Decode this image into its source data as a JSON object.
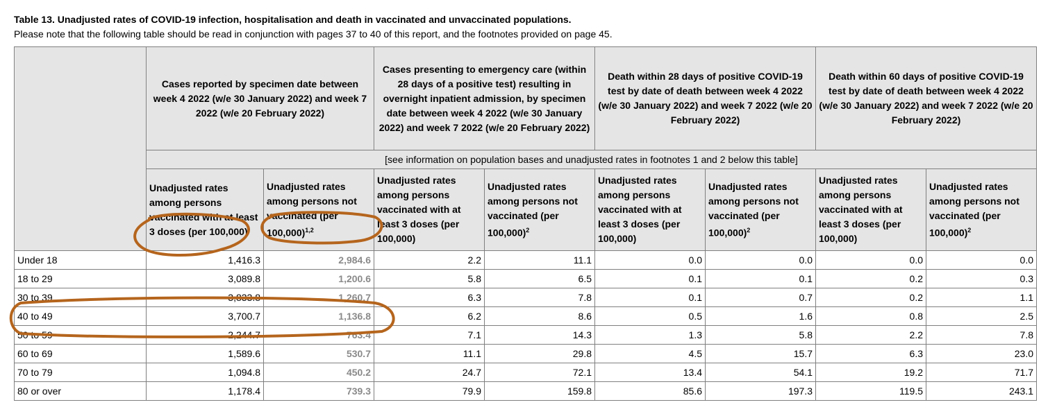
{
  "title": "Table 13. Unadjusted rates of COVID-19 infection, hospitalisation and death in vaccinated and unvaccinated populations.",
  "note": "Please note that the following table should be read in conjunction with pages 37 to 40 of this report, and the footnotes provided on page 45.",
  "groups": [
    "Cases reported by specimen date between week 4 2022 (w/e 30 January 2022) and week 7 2022 (w/e 20 February 2022)",
    "Cases presenting to emergency care (within 28 days of a positive test) resulting in overnight inpatient admission, by specimen date between week 4 2022 (w/e 30 January 2022) and week 7 2022 (w/e 20 February 2022)",
    "Death within 28 days of positive COVID-19 test by date of death between week 4 2022 (w/e 30 January 2022) and week 7 2022 (w/e 20 February 2022)",
    "Death within 60 days of positive COVID-19 test by date of death between week 4 2022 (w/e 30 January 2022) and week 7 2022 (w/e 20 February 2022)"
  ],
  "population_note": "[see information on population bases and unadjusted rates in footnotes 1 and 2 below this table]",
  "subheaders": {
    "vaccinated": "Unadjusted rates among persons vaccinated with at least 3 doses (per 100,000)",
    "unvaccinated": "Unadjusted rates among persons not vaccinated (per 100,000)",
    "sup_first": "1,2",
    "sup_other": "2"
  },
  "rows": [
    {
      "age": "Under 18",
      "values": [
        "1,416.3",
        "2,984.6",
        "2.2",
        "11.1",
        "0.0",
        "0.0",
        "0.0",
        "0.0"
      ]
    },
    {
      "age": "18 to 29",
      "values": [
        "3,089.8",
        "1,200.6",
        "5.8",
        "6.5",
        "0.1",
        "0.1",
        "0.2",
        "0.3"
      ]
    },
    {
      "age": "30 to 39",
      "values": [
        "3,833.8",
        "1,260.7",
        "6.3",
        "7.8",
        "0.1",
        "0.7",
        "0.2",
        "1.1"
      ]
    },
    {
      "age": "40 to 49",
      "values": [
        "3,700.7",
        "1,136.8",
        "6.2",
        "8.6",
        "0.5",
        "1.6",
        "0.8",
        "2.5"
      ]
    },
    {
      "age": "50 to 59",
      "values": [
        "2,244.7",
        "763.4",
        "7.1",
        "14.3",
        "1.3",
        "5.8",
        "2.2",
        "7.8"
      ]
    },
    {
      "age": "60 to 69",
      "values": [
        "1,589.6",
        "530.7",
        "11.1",
        "29.8",
        "4.5",
        "15.7",
        "6.3",
        "23.0"
      ]
    },
    {
      "age": "70 to 79",
      "values": [
        "1,094.8",
        "450.2",
        "24.7",
        "72.1",
        "13.4",
        "54.1",
        "19.2",
        "71.7"
      ]
    },
    {
      "age": "80 or over",
      "values": [
        "1,178.4",
        "739.3",
        "79.9",
        "159.8",
        "85.6",
        "197.3",
        "119.5",
        "243.1"
      ]
    }
  ],
  "colors": {
    "annotation": "#b5651d",
    "header_fill": "#ececec",
    "grid": "#7f7f7f",
    "grey_values": "#8a8a8a"
  }
}
